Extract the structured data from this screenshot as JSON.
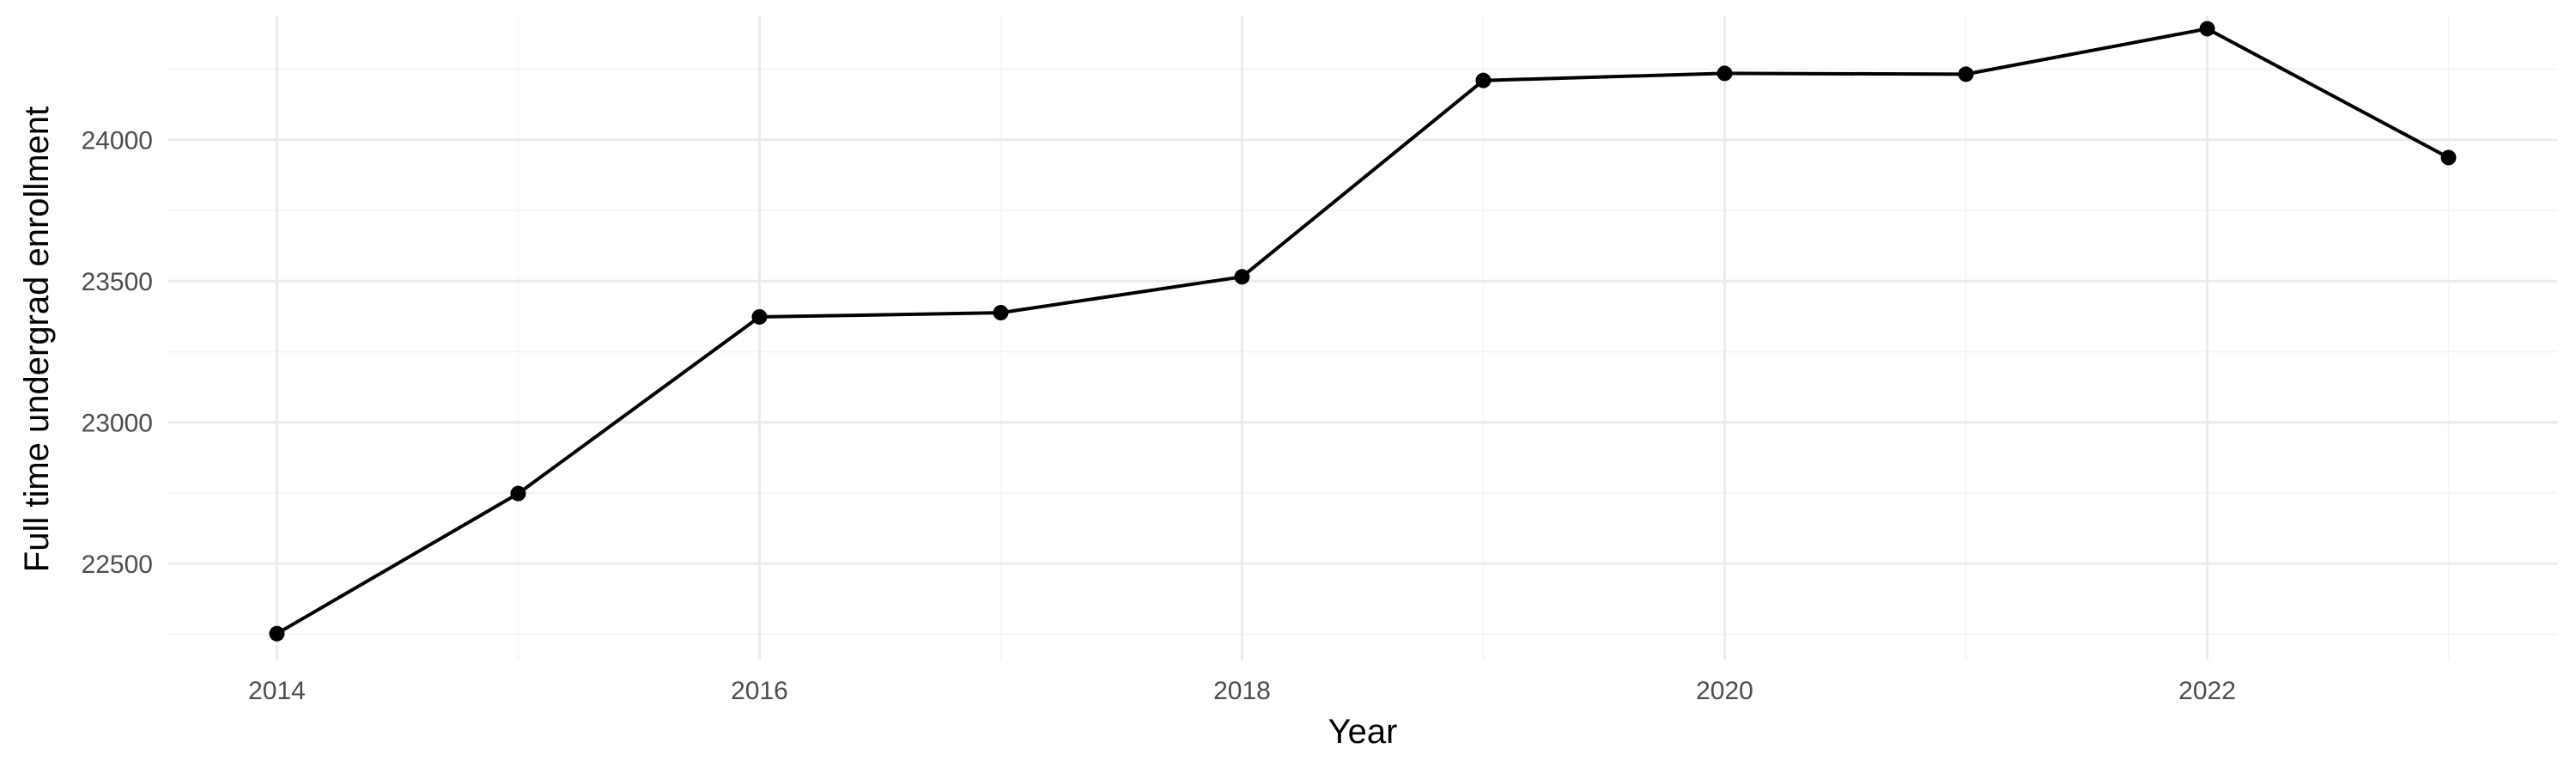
{
  "chart_data": {
    "type": "line",
    "title": "",
    "xlabel": "Year",
    "ylabel": "Full time undergrad enrollment",
    "x": [
      2014,
      2015,
      2016,
      2017,
      2018,
      2019,
      2020,
      2021,
      2022,
      2023
    ],
    "series": [
      {
        "values": [
          22252,
          22748,
          23373,
          23388,
          23515,
          24210,
          24235,
          24232,
          24393,
          23937
        ]
      }
    ],
    "xlim": [
      2013.55,
      2023.45
    ],
    "ylim": [
      22160,
      24440
    ],
    "x_ticks": [
      2014,
      2016,
      2018,
      2020,
      2022
    ],
    "x_tick_labels": [
      "2014",
      "2016",
      "2018",
      "2020",
      "2022"
    ],
    "y_ticks": [
      22500,
      23000,
      23500,
      24000
    ],
    "y_tick_labels": [
      "22500",
      "23000",
      "23500",
      "24000"
    ],
    "grid": true,
    "colors": {
      "line": "#000000",
      "point": "#000000",
      "grid_major": "#ebebeb",
      "grid_minor": "#f5f5f5",
      "tick_text": "#4d4d4d",
      "title_text": "#000000"
    }
  }
}
